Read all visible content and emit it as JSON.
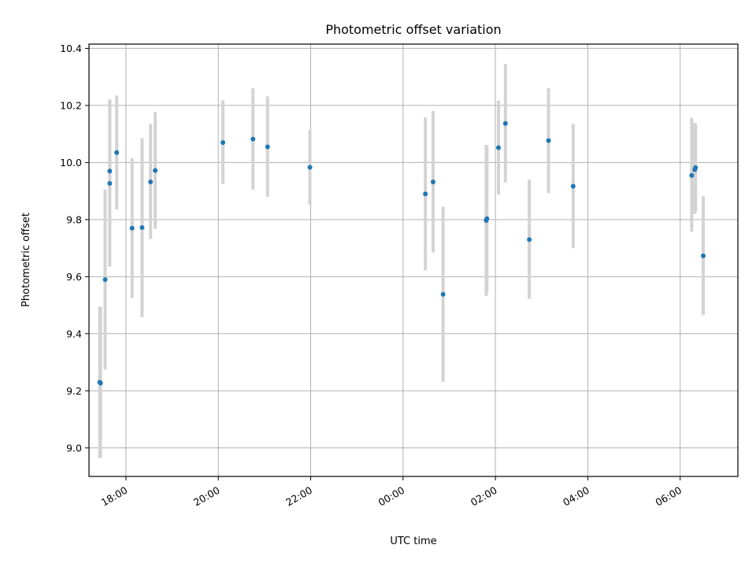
{
  "chart_data": {
    "type": "scatter",
    "title": "Photometric offset variation",
    "xlabel": "UTC time",
    "ylabel": "Photometric offset",
    "x_axis_kind": "time (hours, spanning midnight)",
    "xlim": [
      "17:12",
      "07:15"
    ],
    "ylim": [
      8.9,
      10.415
    ],
    "grid": true,
    "x_tick_labels": [
      "18:00",
      "20:00",
      "22:00",
      "00:00",
      "02:00",
      "04:00",
      "06:00"
    ],
    "y_tick_labels": [
      "9.0",
      "9.2",
      "9.4",
      "9.6",
      "9.8",
      "10.0",
      "10.2",
      "10.4"
    ],
    "colors": {
      "points": "#1f77b4",
      "errorbars": "#d3d3d3",
      "grid": "#b0b0b0"
    },
    "series": [
      {
        "points": [
          {
            "x": "17:26",
            "y": 9.23,
            "ylo": 8.965,
            "yhi": 9.495
          },
          {
            "x": "17:27",
            "y": 9.227,
            "ylo": 8.965,
            "yhi": 9.495
          },
          {
            "x": "17:33",
            "y": 9.59,
            "ylo": 9.275,
            "yhi": 9.905
          },
          {
            "x": "17:39",
            "y": 9.97,
            "ylo": 9.75,
            "yhi": 10.22
          },
          {
            "x": "17:39",
            "y": 9.927,
            "ylo": 9.635,
            "yhi": 10.22
          },
          {
            "x": "17:48",
            "y": 10.035,
            "ylo": 9.835,
            "yhi": 10.235
          },
          {
            "x": "18:08",
            "y": 9.77,
            "ylo": 9.525,
            "yhi": 10.015
          },
          {
            "x": "18:21",
            "y": 9.772,
            "ylo": 9.458,
            "yhi": 10.085
          },
          {
            "x": "18:32",
            "y": 9.932,
            "ylo": 9.732,
            "yhi": 10.135
          },
          {
            "x": "18:38",
            "y": 9.972,
            "ylo": 9.768,
            "yhi": 10.178
          },
          {
            "x": "20:06",
            "y": 10.07,
            "ylo": 9.925,
            "yhi": 10.218
          },
          {
            "x": "20:45",
            "y": 10.082,
            "ylo": 9.905,
            "yhi": 10.26
          },
          {
            "x": "21:04",
            "y": 10.055,
            "ylo": 9.88,
            "yhi": 10.232
          },
          {
            "x": "21:59",
            "y": 9.983,
            "ylo": 9.852,
            "yhi": 10.115
          },
          {
            "x": "00:29",
            "y": 9.89,
            "ylo": 9.622,
            "yhi": 10.158
          },
          {
            "x": "00:39",
            "y": 9.932,
            "ylo": 9.685,
            "yhi": 10.18
          },
          {
            "x": "00:52",
            "y": 9.538,
            "ylo": 9.232,
            "yhi": 9.845
          },
          {
            "x": "01:48",
            "y": 9.797,
            "ylo": 9.532,
            "yhi": 10.062
          },
          {
            "x": "01:49",
            "y": 9.803,
            "ylo": 9.548,
            "yhi": 10.06
          },
          {
            "x": "02:04",
            "y": 10.052,
            "ylo": 9.888,
            "yhi": 10.217
          },
          {
            "x": "02:13",
            "y": 10.137,
            "ylo": 9.93,
            "yhi": 10.345
          },
          {
            "x": "02:44",
            "y": 9.73,
            "ylo": 9.522,
            "yhi": 9.94
          },
          {
            "x": "03:09",
            "y": 10.077,
            "ylo": 9.893,
            "yhi": 10.26
          },
          {
            "x": "03:41",
            "y": 9.917,
            "ylo": 9.7,
            "yhi": 10.135
          },
          {
            "x": "06:15",
            "y": 9.955,
            "ylo": 9.758,
            "yhi": 10.157
          },
          {
            "x": "06:19",
            "y": 9.975,
            "ylo": 9.82,
            "yhi": 10.138
          },
          {
            "x": "06:20",
            "y": 9.982,
            "ylo": 9.828,
            "yhi": 10.136
          },
          {
            "x": "06:30",
            "y": 9.673,
            "ylo": 9.465,
            "yhi": 9.882
          }
        ]
      }
    ]
  }
}
